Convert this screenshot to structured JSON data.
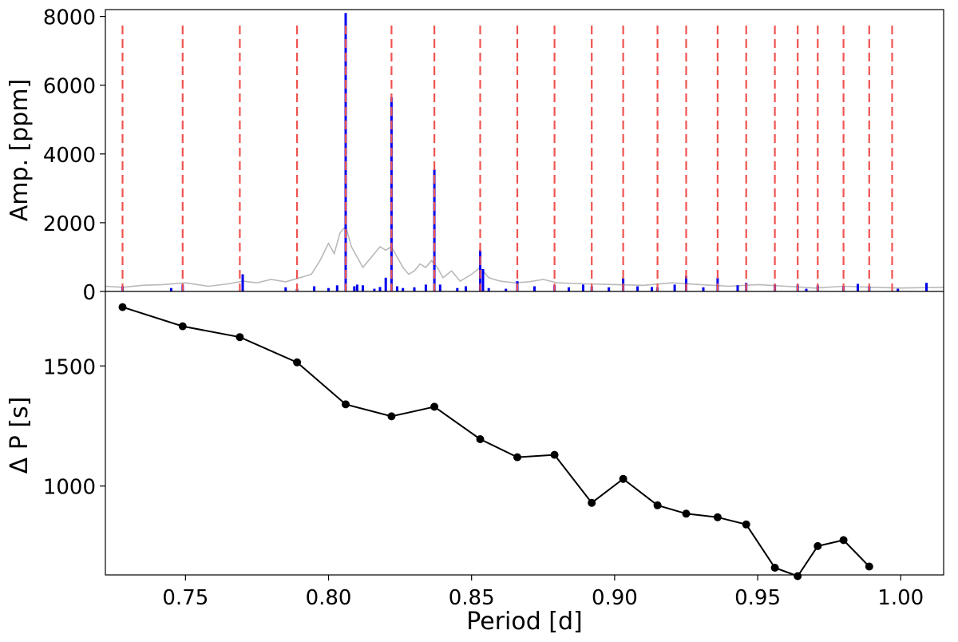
{
  "chart_data": [
    {
      "type": "bar",
      "panel": "top",
      "ylabel": "Amp. [ppm]",
      "xlim": [
        0.722,
        1.015
      ],
      "ylim": [
        0,
        8200
      ],
      "yticks": [
        0,
        2000,
        4000,
        6000,
        8000
      ],
      "ytick_labels": [
        "0",
        "2000",
        "4000",
        "6000",
        "8000"
      ],
      "grid": false,
      "colors": {
        "spectrum": "#b9b9b9",
        "bars": "#0000ee",
        "markers": "#ef5350"
      },
      "vlines_x": [
        0.728,
        0.749,
        0.769,
        0.789,
        0.806,
        0.822,
        0.837,
        0.853,
        0.866,
        0.879,
        0.892,
        0.903,
        0.915,
        0.925,
        0.936,
        0.946,
        0.956,
        0.964,
        0.971,
        0.98,
        0.989,
        0.997
      ],
      "series": [
        {
          "role": "bars",
          "x": [
            0.728,
            0.745,
            0.749,
            0.77,
            0.785,
            0.789,
            0.795,
            0.8,
            0.803,
            0.806,
            0.809,
            0.81,
            0.812,
            0.816,
            0.818,
            0.82,
            0.822,
            0.824,
            0.826,
            0.83,
            0.834,
            0.837,
            0.839,
            0.845,
            0.848,
            0.853,
            0.854,
            0.856,
            0.862,
            0.866,
            0.872,
            0.879,
            0.884,
            0.889,
            0.892,
            0.898,
            0.903,
            0.908,
            0.913,
            0.915,
            0.921,
            0.925,
            0.931,
            0.936,
            0.943,
            0.946,
            0.956,
            0.964,
            0.967,
            0.971,
            0.98,
            0.985,
            0.989,
            0.999,
            1.009
          ],
          "values": [
            150,
            100,
            200,
            500,
            120,
            80,
            150,
            100,
            180,
            8100,
            150,
            200,
            180,
            80,
            130,
            400,
            5650,
            150,
            100,
            120,
            200,
            3550,
            200,
            100,
            150,
            1200,
            650,
            100,
            80,
            300,
            150,
            180,
            120,
            200,
            150,
            120,
            380,
            150,
            130,
            120,
            200,
            450,
            120,
            400,
            180,
            250,
            200,
            200,
            80,
            180,
            150,
            220,
            150,
            80,
            250
          ]
        },
        {
          "role": "spectrum",
          "x": [
            0.722,
            0.728,
            0.735,
            0.742,
            0.75,
            0.758,
            0.765,
            0.77,
            0.775,
            0.78,
            0.785,
            0.79,
            0.794,
            0.797,
            0.8,
            0.802,
            0.804,
            0.806,
            0.808,
            0.81,
            0.812,
            0.814,
            0.816,
            0.818,
            0.82,
            0.822,
            0.824,
            0.826,
            0.828,
            0.83,
            0.832,
            0.834,
            0.836,
            0.838,
            0.84,
            0.843,
            0.846,
            0.85,
            0.853,
            0.856,
            0.86,
            0.865,
            0.87,
            0.875,
            0.88,
            0.89,
            0.9,
            0.91,
            0.92,
            0.93,
            0.94,
            0.95,
            0.96,
            0.97,
            0.98,
            0.99,
            1.0,
            1.015
          ],
          "values": [
            150,
            120,
            180,
            200,
            250,
            150,
            220,
            300,
            250,
            350,
            280,
            400,
            500,
            900,
            1400,
            1100,
            1700,
            1900,
            1300,
            1000,
            700,
            900,
            1100,
            1300,
            1200,
            1300,
            1000,
            700,
            500,
            600,
            800,
            700,
            900,
            700,
            400,
            600,
            300,
            500,
            700,
            400,
            300,
            250,
            280,
            350,
            250,
            220,
            200,
            180,
            250,
            200,
            150,
            200,
            150,
            100,
            150,
            120,
            100,
            120
          ]
        }
      ]
    },
    {
      "type": "line",
      "panel": "bottom",
      "xlabel": "Period [d]",
      "ylabel": "Δ P [s]",
      "xlim": [
        0.722,
        1.015
      ],
      "ylim": [
        630,
        1810
      ],
      "xticks": [
        0.75,
        0.8,
        0.85,
        0.9,
        0.95,
        1.0
      ],
      "xtick_labels": [
        "0.75",
        "0.80",
        "0.85",
        "0.90",
        "0.95",
        "1.00"
      ],
      "yticks": [
        1000,
        1500
      ],
      "ytick_labels": [
        "1000",
        "1500"
      ],
      "grid": false,
      "colors": {
        "line": "#000000"
      },
      "series": [
        {
          "x": [
            0.728,
            0.749,
            0.769,
            0.789,
            0.806,
            0.822,
            0.837,
            0.853,
            0.866,
            0.879,
            0.892,
            0.903,
            0.915,
            0.925,
            0.936,
            0.946,
            0.956,
            0.964,
            0.971,
            0.98,
            0.989
          ],
          "values": [
            1745,
            1665,
            1620,
            1515,
            1340,
            1290,
            1330,
            1195,
            1120,
            1130,
            930,
            1030,
            920,
            885,
            870,
            840,
            660,
            625,
            750,
            775,
            665
          ]
        }
      ]
    }
  ]
}
